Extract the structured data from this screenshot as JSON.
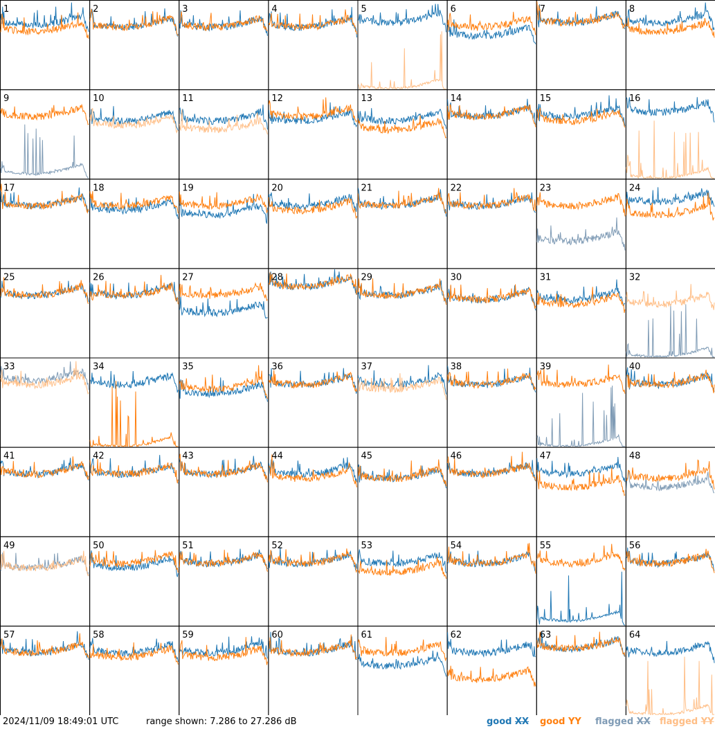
{
  "footer": {
    "timestamp": "2024/11/09 18:49:01 UTC",
    "range": "range shown: 7.286 to 27.286 dB",
    "legend": [
      {
        "prefix": "good",
        "pol": "XX",
        "color": "#1f77b4"
      },
      {
        "prefix": "good",
        "pol": "YY",
        "color": "#ff7f0e"
      },
      {
        "prefix": "flagged",
        "pol": "XX",
        "color": "#7f9bb5"
      },
      {
        "prefix": "flagged",
        "pol": "YY",
        "color": "#ffbe86"
      }
    ]
  },
  "chart_data": {
    "type": "line",
    "grid": "8x8 small multiples",
    "ylim_db": [
      7.286,
      27.286
    ],
    "colors": {
      "good_xx": "#1f77b4",
      "good_yy": "#ff7f0e",
      "flagged_xx": "#7f9bb5",
      "flagged_yy": "#ffbe86"
    },
    "panels": [
      {
        "label": "1",
        "xx": "good",
        "yy": "good",
        "levels_db": [
          22.5,
          21
        ]
      },
      {
        "label": "2",
        "xx": "good",
        "yy": "good",
        "levels_db": [
          22,
          22
        ]
      },
      {
        "label": "3",
        "xx": "good",
        "yy": "good",
        "levels_db": [
          22,
          22
        ]
      },
      {
        "label": "4",
        "xx": "good",
        "yy": "good",
        "levels_db": [
          22,
          22
        ]
      },
      {
        "label": "5",
        "xx": "good",
        "yy": "flagged",
        "levels_db": [
          23,
          8
        ]
      },
      {
        "label": "6",
        "xx": "good",
        "yy": "good",
        "levels_db": [
          20,
          22
        ]
      },
      {
        "label": "7",
        "xx": "good",
        "yy": "good",
        "levels_db": [
          23,
          23
        ]
      },
      {
        "label": "8",
        "xx": "good",
        "yy": "good",
        "levels_db": [
          23,
          21
        ]
      },
      {
        "label": "9",
        "xx": "flagged",
        "yy": "good",
        "levels_db": [
          9,
          22
        ]
      },
      {
        "label": "10",
        "xx": "good",
        "yy": "flagged",
        "levels_db": [
          21,
          20
        ]
      },
      {
        "label": "11",
        "xx": "good",
        "yy": "flagged",
        "levels_db": [
          21,
          19
        ]
      },
      {
        "label": "12",
        "xx": "good",
        "yy": "good",
        "levels_db": [
          21,
          22
        ]
      },
      {
        "label": "13",
        "xx": "good",
        "yy": "good",
        "levels_db": [
          21,
          19
        ]
      },
      {
        "label": "14",
        "xx": "good",
        "yy": "good",
        "levels_db": [
          22,
          22
        ]
      },
      {
        "label": "15",
        "xx": "good",
        "yy": "good",
        "levels_db": [
          22,
          21
        ]
      },
      {
        "label": "16",
        "xx": "good",
        "yy": "flagged",
        "levels_db": [
          23,
          8
        ]
      },
      {
        "label": "17",
        "xx": "good",
        "yy": "good",
        "levels_db": [
          22,
          22
        ]
      },
      {
        "label": "18",
        "xx": "good",
        "yy": "good",
        "levels_db": [
          21,
          22
        ]
      },
      {
        "label": "19",
        "xx": "good",
        "yy": "good",
        "levels_db": [
          20,
          22
        ]
      },
      {
        "label": "20",
        "xx": "good",
        "yy": "good",
        "levels_db": [
          22,
          21
        ]
      },
      {
        "label": "21",
        "xx": "good",
        "yy": "good",
        "levels_db": [
          22,
          22
        ]
      },
      {
        "label": "22",
        "xx": "good",
        "yy": "good",
        "levels_db": [
          22,
          22
        ]
      },
      {
        "label": "23",
        "xx": "flagged",
        "yy": "good",
        "levels_db": [
          14,
          22
        ]
      },
      {
        "label": "24",
        "xx": "good",
        "yy": "good",
        "levels_db": [
          23,
          20
        ]
      },
      {
        "label": "25",
        "xx": "good",
        "yy": "good",
        "levels_db": [
          22,
          22
        ]
      },
      {
        "label": "26",
        "xx": "good",
        "yy": "good",
        "levels_db": [
          22,
          22
        ]
      },
      {
        "label": "27",
        "xx": "good",
        "yy": "good",
        "levels_db": [
          18,
          22
        ]
      },
      {
        "label": "28",
        "xx": "good",
        "yy": "good",
        "levels_db": [
          24,
          24
        ]
      },
      {
        "label": "29",
        "xx": "good",
        "yy": "good",
        "levels_db": [
          22,
          22
        ]
      },
      {
        "label": "30",
        "xx": "good",
        "yy": "good",
        "levels_db": [
          21,
          21
        ]
      },
      {
        "label": "31",
        "xx": "good",
        "yy": "good",
        "levels_db": [
          21,
          20
        ]
      },
      {
        "label": "32",
        "xx": "flagged",
        "yy": "flagged",
        "levels_db": [
          8,
          20
        ]
      },
      {
        "label": "33",
        "xx": "flagged",
        "yy": "flagged",
        "levels_db": [
          23,
          22
        ]
      },
      {
        "label": "34",
        "xx": "good",
        "yy": "good",
        "levels_db": [
          22,
          8
        ]
      },
      {
        "label": "35",
        "xx": "good",
        "yy": "good",
        "levels_db": [
          20,
          21
        ]
      },
      {
        "label": "36",
        "xx": "good",
        "yy": "good",
        "levels_db": [
          22,
          22
        ]
      },
      {
        "label": "37",
        "xx": "good",
        "yy": "flagged",
        "levels_db": [
          22,
          21
        ]
      },
      {
        "label": "38",
        "xx": "good",
        "yy": "good",
        "levels_db": [
          22,
          22
        ]
      },
      {
        "label": "39",
        "xx": "flagged",
        "yy": "good",
        "levels_db": [
          8,
          22
        ]
      },
      {
        "label": "40",
        "xx": "good",
        "yy": "good",
        "levels_db": [
          22,
          22
        ]
      },
      {
        "label": "41",
        "xx": "good",
        "yy": "good",
        "levels_db": [
          22,
          22
        ]
      },
      {
        "label": "42",
        "xx": "good",
        "yy": "good",
        "levels_db": [
          22,
          22
        ]
      },
      {
        "label": "43",
        "xx": "good",
        "yy": "good",
        "levels_db": [
          22,
          22
        ]
      },
      {
        "label": "44",
        "xx": "good",
        "yy": "good",
        "levels_db": [
          22,
          21
        ]
      },
      {
        "label": "45",
        "xx": "good",
        "yy": "good",
        "levels_db": [
          21,
          21
        ]
      },
      {
        "label": "46",
        "xx": "good",
        "yy": "good",
        "levels_db": [
          22,
          22
        ]
      },
      {
        "label": "47",
        "xx": "good",
        "yy": "good",
        "levels_db": [
          22,
          19
        ]
      },
      {
        "label": "48",
        "xx": "flagged",
        "yy": "good",
        "levels_db": [
          19,
          21
        ]
      },
      {
        "label": "49",
        "xx": "flagged",
        "yy": "flagged",
        "levels_db": [
          21,
          21
        ]
      },
      {
        "label": "50",
        "xx": "good",
        "yy": "good",
        "levels_db": [
          21,
          22
        ]
      },
      {
        "label": "51",
        "xx": "good",
        "yy": "good",
        "levels_db": [
          22,
          22
        ]
      },
      {
        "label": "52",
        "xx": "good",
        "yy": "good",
        "levels_db": [
          22,
          22
        ]
      },
      {
        "label": "53",
        "xx": "good",
        "yy": "good",
        "levels_db": [
          22,
          20
        ]
      },
      {
        "label": "54",
        "xx": "good",
        "yy": "good",
        "levels_db": [
          22,
          22
        ]
      },
      {
        "label": "55",
        "xx": "good",
        "yy": "good",
        "levels_db": [
          9,
          22
        ]
      },
      {
        "label": "56",
        "xx": "good",
        "yy": "good",
        "levels_db": [
          22,
          22
        ]
      },
      {
        "label": "57",
        "xx": "good",
        "yy": "good",
        "levels_db": [
          22,
          22
        ]
      },
      {
        "label": "58",
        "xx": "good",
        "yy": "good",
        "levels_db": [
          22,
          21
        ]
      },
      {
        "label": "59",
        "xx": "good",
        "yy": "good",
        "levels_db": [
          22,
          21
        ]
      },
      {
        "label": "60",
        "xx": "good",
        "yy": "good",
        "levels_db": [
          22,
          22
        ]
      },
      {
        "label": "61",
        "xx": "good",
        "yy": "good",
        "levels_db": [
          19,
          22
        ]
      },
      {
        "label": "62",
        "xx": "good",
        "yy": "good",
        "levels_db": [
          22,
          16
        ]
      },
      {
        "label": "63",
        "xx": "good",
        "yy": "good",
        "levels_db": [
          23,
          23
        ]
      },
      {
        "label": "64",
        "xx": "good",
        "yy": "flagged",
        "levels_db": [
          22,
          8
        ]
      }
    ]
  }
}
